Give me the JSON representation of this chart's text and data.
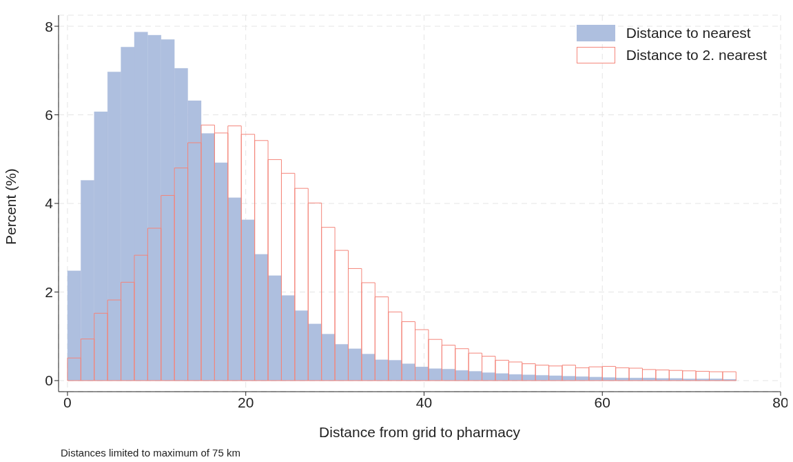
{
  "chart_data": {
    "type": "histogram",
    "xlabel": "Distance from grid to pharmacy",
    "ylabel": "Percent (%)",
    "bins": [
      0,
      1.5,
      3,
      4.5,
      6,
      7.5,
      9,
      10.5,
      12,
      13.5,
      15,
      16.5,
      18,
      19.5,
      21,
      22.5,
      24,
      25.5,
      27,
      28.5,
      30,
      31.5,
      33,
      34.5,
      36,
      37.5,
      39,
      40.5,
      42,
      43.5,
      45,
      46.5,
      48,
      49.5,
      51,
      52.5,
      54,
      55.5,
      57,
      58.5,
      60,
      61.5,
      63,
      64.5,
      66,
      67.5,
      69,
      70.5,
      72,
      73.5,
      75
    ],
    "series": [
      {
        "name": "Distance to nearest",
        "color": "#aebfdf",
        "values": [
          2.48,
          4.52,
          6.07,
          6.97,
          7.53,
          7.87,
          7.8,
          7.7,
          7.05,
          6.32,
          5.58,
          4.92,
          4.13,
          3.63,
          2.85,
          2.37,
          1.92,
          1.58,
          1.28,
          1.05,
          0.82,
          0.72,
          0.6,
          0.47,
          0.46,
          0.38,
          0.31,
          0.27,
          0.26,
          0.23,
          0.21,
          0.18,
          0.16,
          0.14,
          0.13,
          0.12,
          0.11,
          0.1,
          0.09,
          0.08,
          0.07,
          0.06,
          0.06,
          0.06,
          0.05,
          0.05,
          0.04,
          0.04,
          0.04,
          0.03
        ]
      },
      {
        "name": "Distance to 2. nearest",
        "color": "#f4857a",
        "values": [
          0.51,
          0.94,
          1.52,
          1.82,
          2.22,
          2.83,
          3.44,
          4.18,
          4.8,
          5.37,
          5.77,
          5.59,
          5.75,
          5.56,
          5.42,
          4.99,
          4.68,
          4.34,
          4.01,
          3.46,
          2.94,
          2.53,
          2.21,
          1.89,
          1.55,
          1.33,
          1.15,
          0.93,
          0.8,
          0.72,
          0.62,
          0.55,
          0.46,
          0.42,
          0.38,
          0.35,
          0.33,
          0.35,
          0.29,
          0.31,
          0.32,
          0.29,
          0.28,
          0.25,
          0.24,
          0.23,
          0.22,
          0.21,
          0.2,
          0.2
        ]
      }
    ],
    "xlim": [
      -1,
      80
    ],
    "xticks": [
      0,
      20,
      40,
      60,
      80
    ],
    "ylim": [
      -0.25,
      8.25
    ],
    "yticks": [
      0,
      2,
      4,
      6,
      8
    ],
    "grid": true,
    "legend": "top right",
    "annotations": [
      "Distances limited to maximum of 75 km"
    ]
  }
}
